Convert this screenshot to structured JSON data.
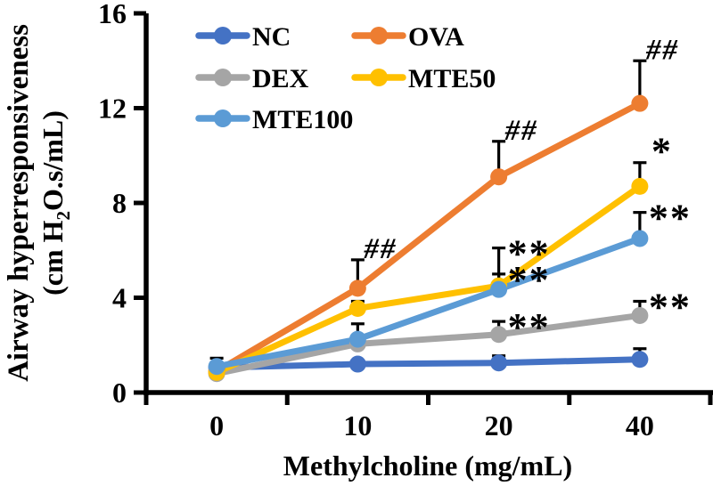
{
  "figure": {
    "background": "#ffffff",
    "axis_color": "#000000",
    "text_color": "#000000"
  },
  "chart_data": {
    "type": "line",
    "title": "",
    "xlabel": "Methylcholine (mg/mL)",
    "ylabel_line1": "Airway hyperresponsiveness",
    "ylabel_line2_pre": "(cm H",
    "ylabel_line2_sub": "2",
    "ylabel_line2_post": "O.s/mL)",
    "categories": [
      "0",
      "10",
      "20",
      "40"
    ],
    "ylim": [
      0,
      16
    ],
    "yticks": [
      0,
      4,
      8,
      12,
      16
    ],
    "grid": false,
    "legend_position": "top-left-inside",
    "series": [
      {
        "name": "NC",
        "color": "#4472C4",
        "values": [
          1.05,
          1.2,
          1.25,
          1.4
        ],
        "errors_up": [
          0.1,
          0.15,
          0.3,
          0.45
        ]
      },
      {
        "name": "OVA",
        "color": "#ED7D31",
        "values": [
          0.9,
          4.4,
          9.1,
          12.2
        ],
        "errors_up": [
          0.2,
          1.2,
          1.5,
          1.8
        ]
      },
      {
        "name": "DEX",
        "color": "#A5A5A5",
        "values": [
          0.8,
          2.05,
          2.45,
          3.25
        ],
        "errors_up": [
          0.1,
          0.2,
          0.55,
          0.6
        ]
      },
      {
        "name": "MTE50",
        "color": "#FFC000",
        "values": [
          0.85,
          3.55,
          4.5,
          8.7
        ],
        "errors_up": [
          0.15,
          0.3,
          1.6,
          1.0
        ]
      },
      {
        "name": "MTE100",
        "color": "#5B9BD5",
        "values": [
          1.1,
          2.25,
          4.35,
          6.5
        ],
        "errors_up": [
          0.35,
          0.65,
          0.65,
          1.1
        ]
      }
    ],
    "annotations": [
      {
        "series": "OVA",
        "x_index": 1,
        "text": "##"
      },
      {
        "series": "OVA",
        "x_index": 2,
        "text": "##"
      },
      {
        "series": "OVA",
        "x_index": 3,
        "text": "##"
      },
      {
        "series": "MTE50",
        "x_index": 2,
        "text": "**"
      },
      {
        "series": "MTE100",
        "x_index": 2,
        "text": "**"
      },
      {
        "series": "DEX",
        "x_index": 2,
        "text": "**"
      },
      {
        "series": "MTE50",
        "x_index": 3,
        "text": "*"
      },
      {
        "series": "MTE100",
        "x_index": 3,
        "text": "**"
      },
      {
        "series": "DEX",
        "x_index": 3,
        "text": "**"
      }
    ],
    "legend_entries": [
      "NC",
      "OVA",
      "DEX",
      "MTE50",
      "MTE100"
    ]
  }
}
